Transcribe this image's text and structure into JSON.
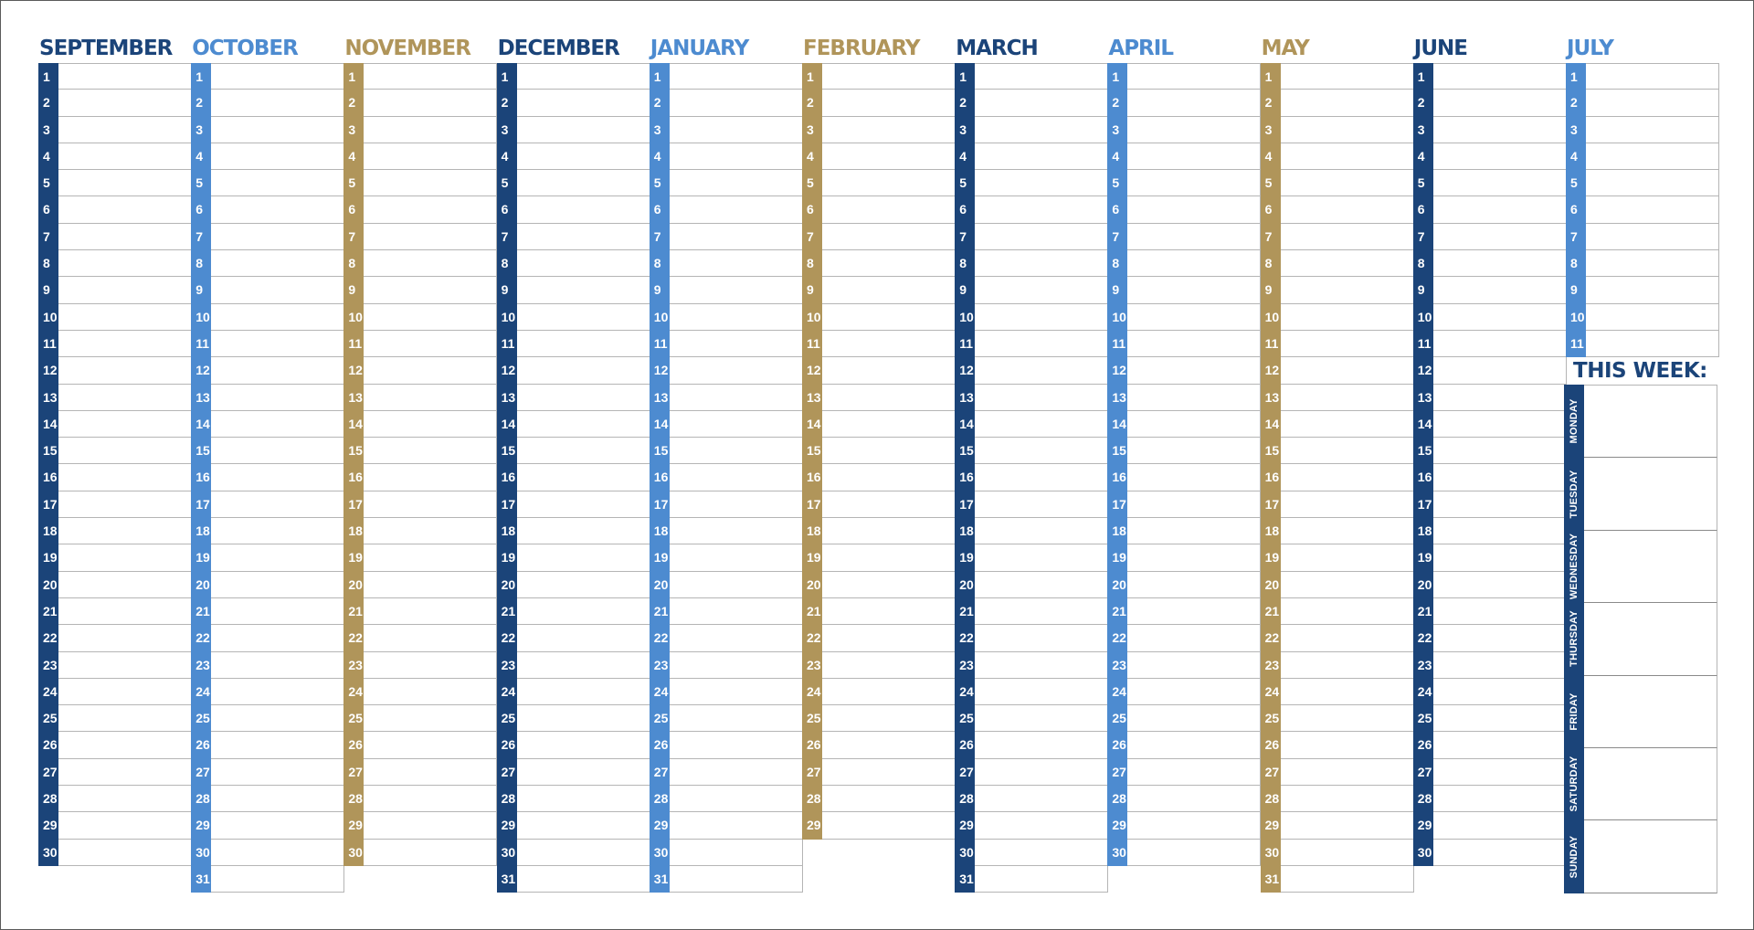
{
  "colors": {
    "navy": "#1b4479",
    "blue": "#4d8bd0",
    "gold": "#b0955a"
  },
  "months": [
    {
      "name": "SEPTEMBER",
      "days": 30,
      "color": "navy"
    },
    {
      "name": "OCTOBER",
      "days": 31,
      "color": "blue"
    },
    {
      "name": "NOVEMBER",
      "days": 30,
      "color": "gold"
    },
    {
      "name": "DECEMBER",
      "days": 31,
      "color": "navy"
    },
    {
      "name": "JANUARY",
      "days": 31,
      "color": "blue"
    },
    {
      "name": "FEBRUARY",
      "days": 29,
      "color": "gold"
    },
    {
      "name": "MARCH",
      "days": 31,
      "color": "navy"
    },
    {
      "name": "APRIL",
      "days": 30,
      "color": "blue"
    },
    {
      "name": "MAY",
      "days": 31,
      "color": "gold"
    },
    {
      "name": "JUNE",
      "days": 30,
      "color": "navy"
    },
    {
      "name": "JULY",
      "days": 11,
      "color": "blue"
    }
  ],
  "this_week": {
    "title": "THIS WEEK:",
    "color": "navy",
    "days": [
      "MONDAY",
      "TUESDAY",
      "WEDNESDAY",
      "THURSDAY",
      "FRIDAY",
      "SATURDAY",
      "SUNDAY"
    ]
  }
}
